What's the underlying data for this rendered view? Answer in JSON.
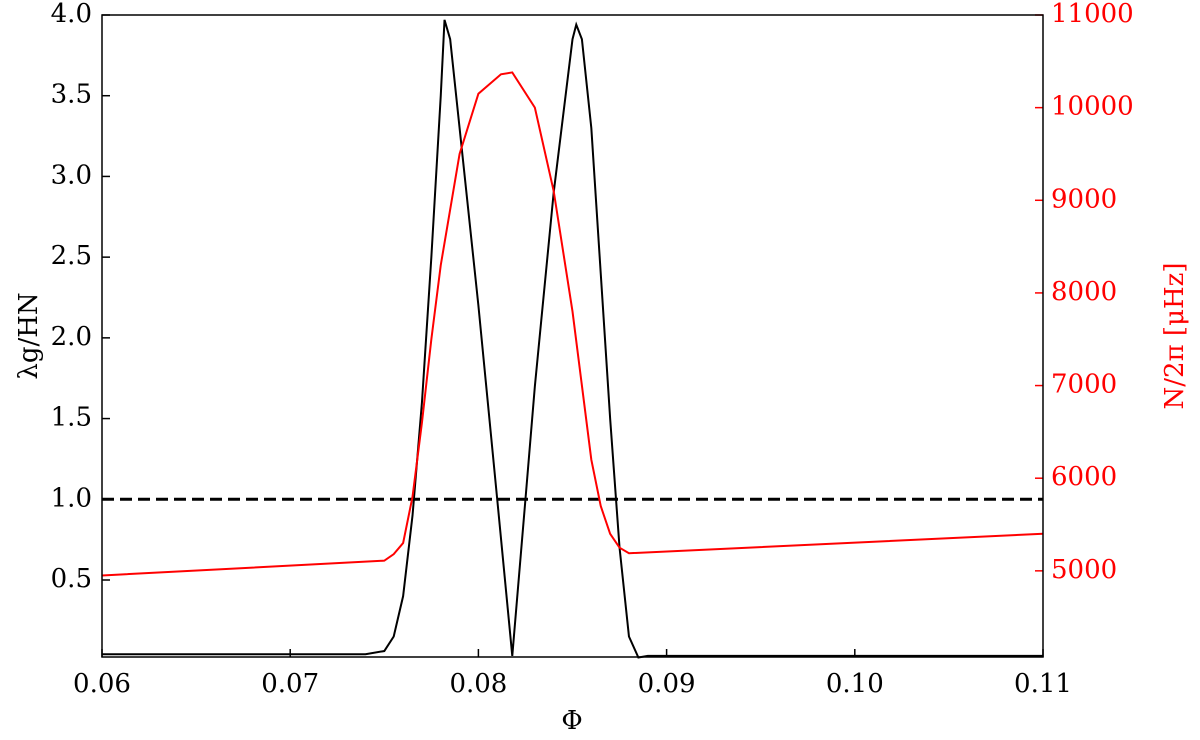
{
  "chart_data": {
    "type": "line",
    "x_label": "Φ",
    "y_label": "λg/HN",
    "y2_label": "N/2π [μHz]",
    "xlim": [
      0.06,
      0.11
    ],
    "xticks": [
      0.06,
      0.07,
      0.08,
      0.09,
      {
        "value": 0.1,
        "label": "0.10"
      },
      0.11
    ],
    "ylim": [
      0.023,
      4.0
    ],
    "yticks": [
      0.5,
      {
        "value": 1,
        "label": "1.0"
      },
      1.5,
      {
        "value": 2,
        "label": "2.0"
      },
      2.5,
      {
        "value": 3,
        "label": "3.0"
      },
      3.5,
      {
        "value": 4,
        "label": "4.0"
      }
    ],
    "y2lim": [
      4070,
      11000
    ],
    "y2ticks": [
      5000,
      6000,
      7000,
      8000,
      9000,
      10000,
      11000
    ],
    "hline": {
      "value": 1.0,
      "color": "#000000",
      "dashed": true
    },
    "series": [
      {
        "name": "λg/HN",
        "color": "#000000",
        "x": [
          0.06,
          0.074,
          0.075,
          0.0755,
          0.076,
          0.0765,
          0.077,
          0.0775,
          0.078,
          0.0782,
          0.0785,
          0.079,
          0.08,
          0.081,
          0.0818,
          0.0825,
          0.083,
          0.084,
          0.085,
          0.0852,
          0.0855,
          0.086,
          0.0865,
          0.087,
          0.0875,
          0.088,
          0.0885,
          0.089,
          0.11
        ],
        "values": [
          0.04,
          0.04,
          0.06,
          0.15,
          0.4,
          0.9,
          1.6,
          2.5,
          3.5,
          3.97,
          3.85,
          3.3,
          2.2,
          1.0,
          0.03,
          1.0,
          1.7,
          2.9,
          3.85,
          3.94,
          3.85,
          3.3,
          2.4,
          1.5,
          0.7,
          0.15,
          0.02,
          0.03,
          0.03
        ]
      },
      {
        "name": "N/2π",
        "color": "#ff0000",
        "axis": "y2",
        "x": [
          0.06,
          0.075,
          0.0755,
          0.076,
          0.0765,
          0.077,
          0.0775,
          0.078,
          0.079,
          0.08,
          0.0812,
          0.0818,
          0.083,
          0.084,
          0.085,
          0.0855,
          0.086,
          0.0865,
          0.087,
          0.0875,
          0.088,
          0.11
        ],
        "values": [
          4950,
          5110,
          5180,
          5300,
          5800,
          6600,
          7500,
          8300,
          9500,
          10150,
          10360,
          10380,
          10000,
          9100,
          7800,
          7000,
          6200,
          5700,
          5400,
          5250,
          5190,
          5400
        ]
      }
    ]
  }
}
